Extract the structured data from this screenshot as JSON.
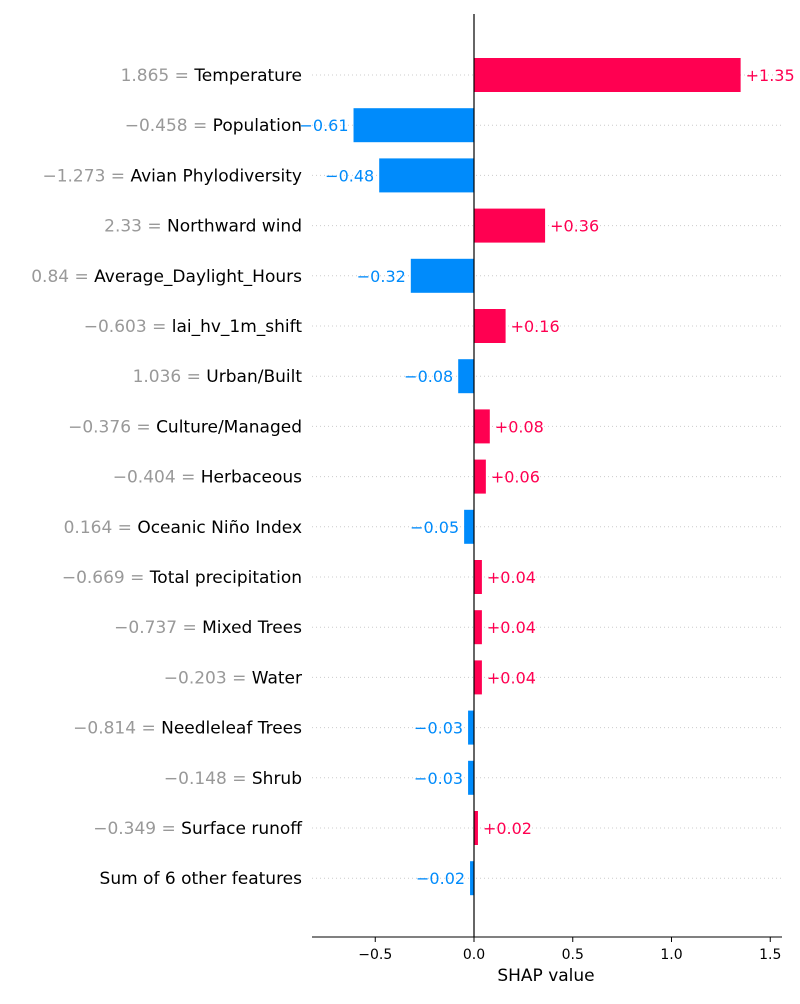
{
  "chart_data": {
    "type": "bar",
    "orientation": "horizontal",
    "xlabel": "SHAP value",
    "xlim": [
      -0.82,
      1.55
    ],
    "xticks": [
      -0.5,
      0.0,
      0.5,
      1.0,
      1.5
    ],
    "xtick_labels": [
      "−0.5",
      "0.0",
      "0.5",
      "1.0",
      "1.5"
    ],
    "gridlines": "horizontal dotted",
    "colors": {
      "positive": "#ff0051",
      "negative": "#008bfb",
      "feature_value": "#999999",
      "feature_name": "#000000"
    },
    "features": [
      {
        "value_label": "1.865 = ",
        "name": "Temperature",
        "shap": 1.35,
        "shap_label": "+1.35"
      },
      {
        "value_label": "−0.458 = ",
        "name": "Population",
        "shap": -0.61,
        "shap_label": "−0.61"
      },
      {
        "value_label": "−1.273 = ",
        "name": "Avian Phylodiversity",
        "shap": -0.48,
        "shap_label": "−0.48"
      },
      {
        "value_label": "2.33 = ",
        "name": "Northward wind",
        "shap": 0.36,
        "shap_label": "+0.36"
      },
      {
        "value_label": "0.84 = ",
        "name": "Average_Daylight_Hours",
        "shap": -0.32,
        "shap_label": "−0.32"
      },
      {
        "value_label": "−0.603 = ",
        "name": "lai_hv_1m_shift",
        "shap": 0.16,
        "shap_label": "+0.16"
      },
      {
        "value_label": "1.036 = ",
        "name": "Urban/Built",
        "shap": -0.08,
        "shap_label": "−0.08"
      },
      {
        "value_label": "−0.376 = ",
        "name": "Culture/Managed",
        "shap": 0.08,
        "shap_label": "+0.08"
      },
      {
        "value_label": "−0.404 = ",
        "name": "Herbaceous",
        "shap": 0.06,
        "shap_label": "+0.06"
      },
      {
        "value_label": "0.164 = ",
        "name": "Oceanic Niño Index",
        "shap": -0.05,
        "shap_label": "−0.05"
      },
      {
        "value_label": "−0.669 = ",
        "name": "Total precipitation",
        "shap": 0.04,
        "shap_label": "+0.04"
      },
      {
        "value_label": "−0.737 = ",
        "name": "Mixed Trees",
        "shap": 0.04,
        "shap_label": "+0.04"
      },
      {
        "value_label": "−0.203 = ",
        "name": "Water",
        "shap": 0.04,
        "shap_label": "+0.04"
      },
      {
        "value_label": "−0.814 = ",
        "name": "Needleleaf Trees",
        "shap": -0.03,
        "shap_label": "−0.03"
      },
      {
        "value_label": "−0.148 = ",
        "name": "Shrub",
        "shap": -0.03,
        "shap_label": "−0.03"
      },
      {
        "value_label": "−0.349 = ",
        "name": "Surface runoff",
        "shap": 0.02,
        "shap_label": "+0.02"
      },
      {
        "value_label": "",
        "name": "Sum of 6 other features",
        "shap": -0.02,
        "shap_label": "−0.02"
      }
    ]
  }
}
